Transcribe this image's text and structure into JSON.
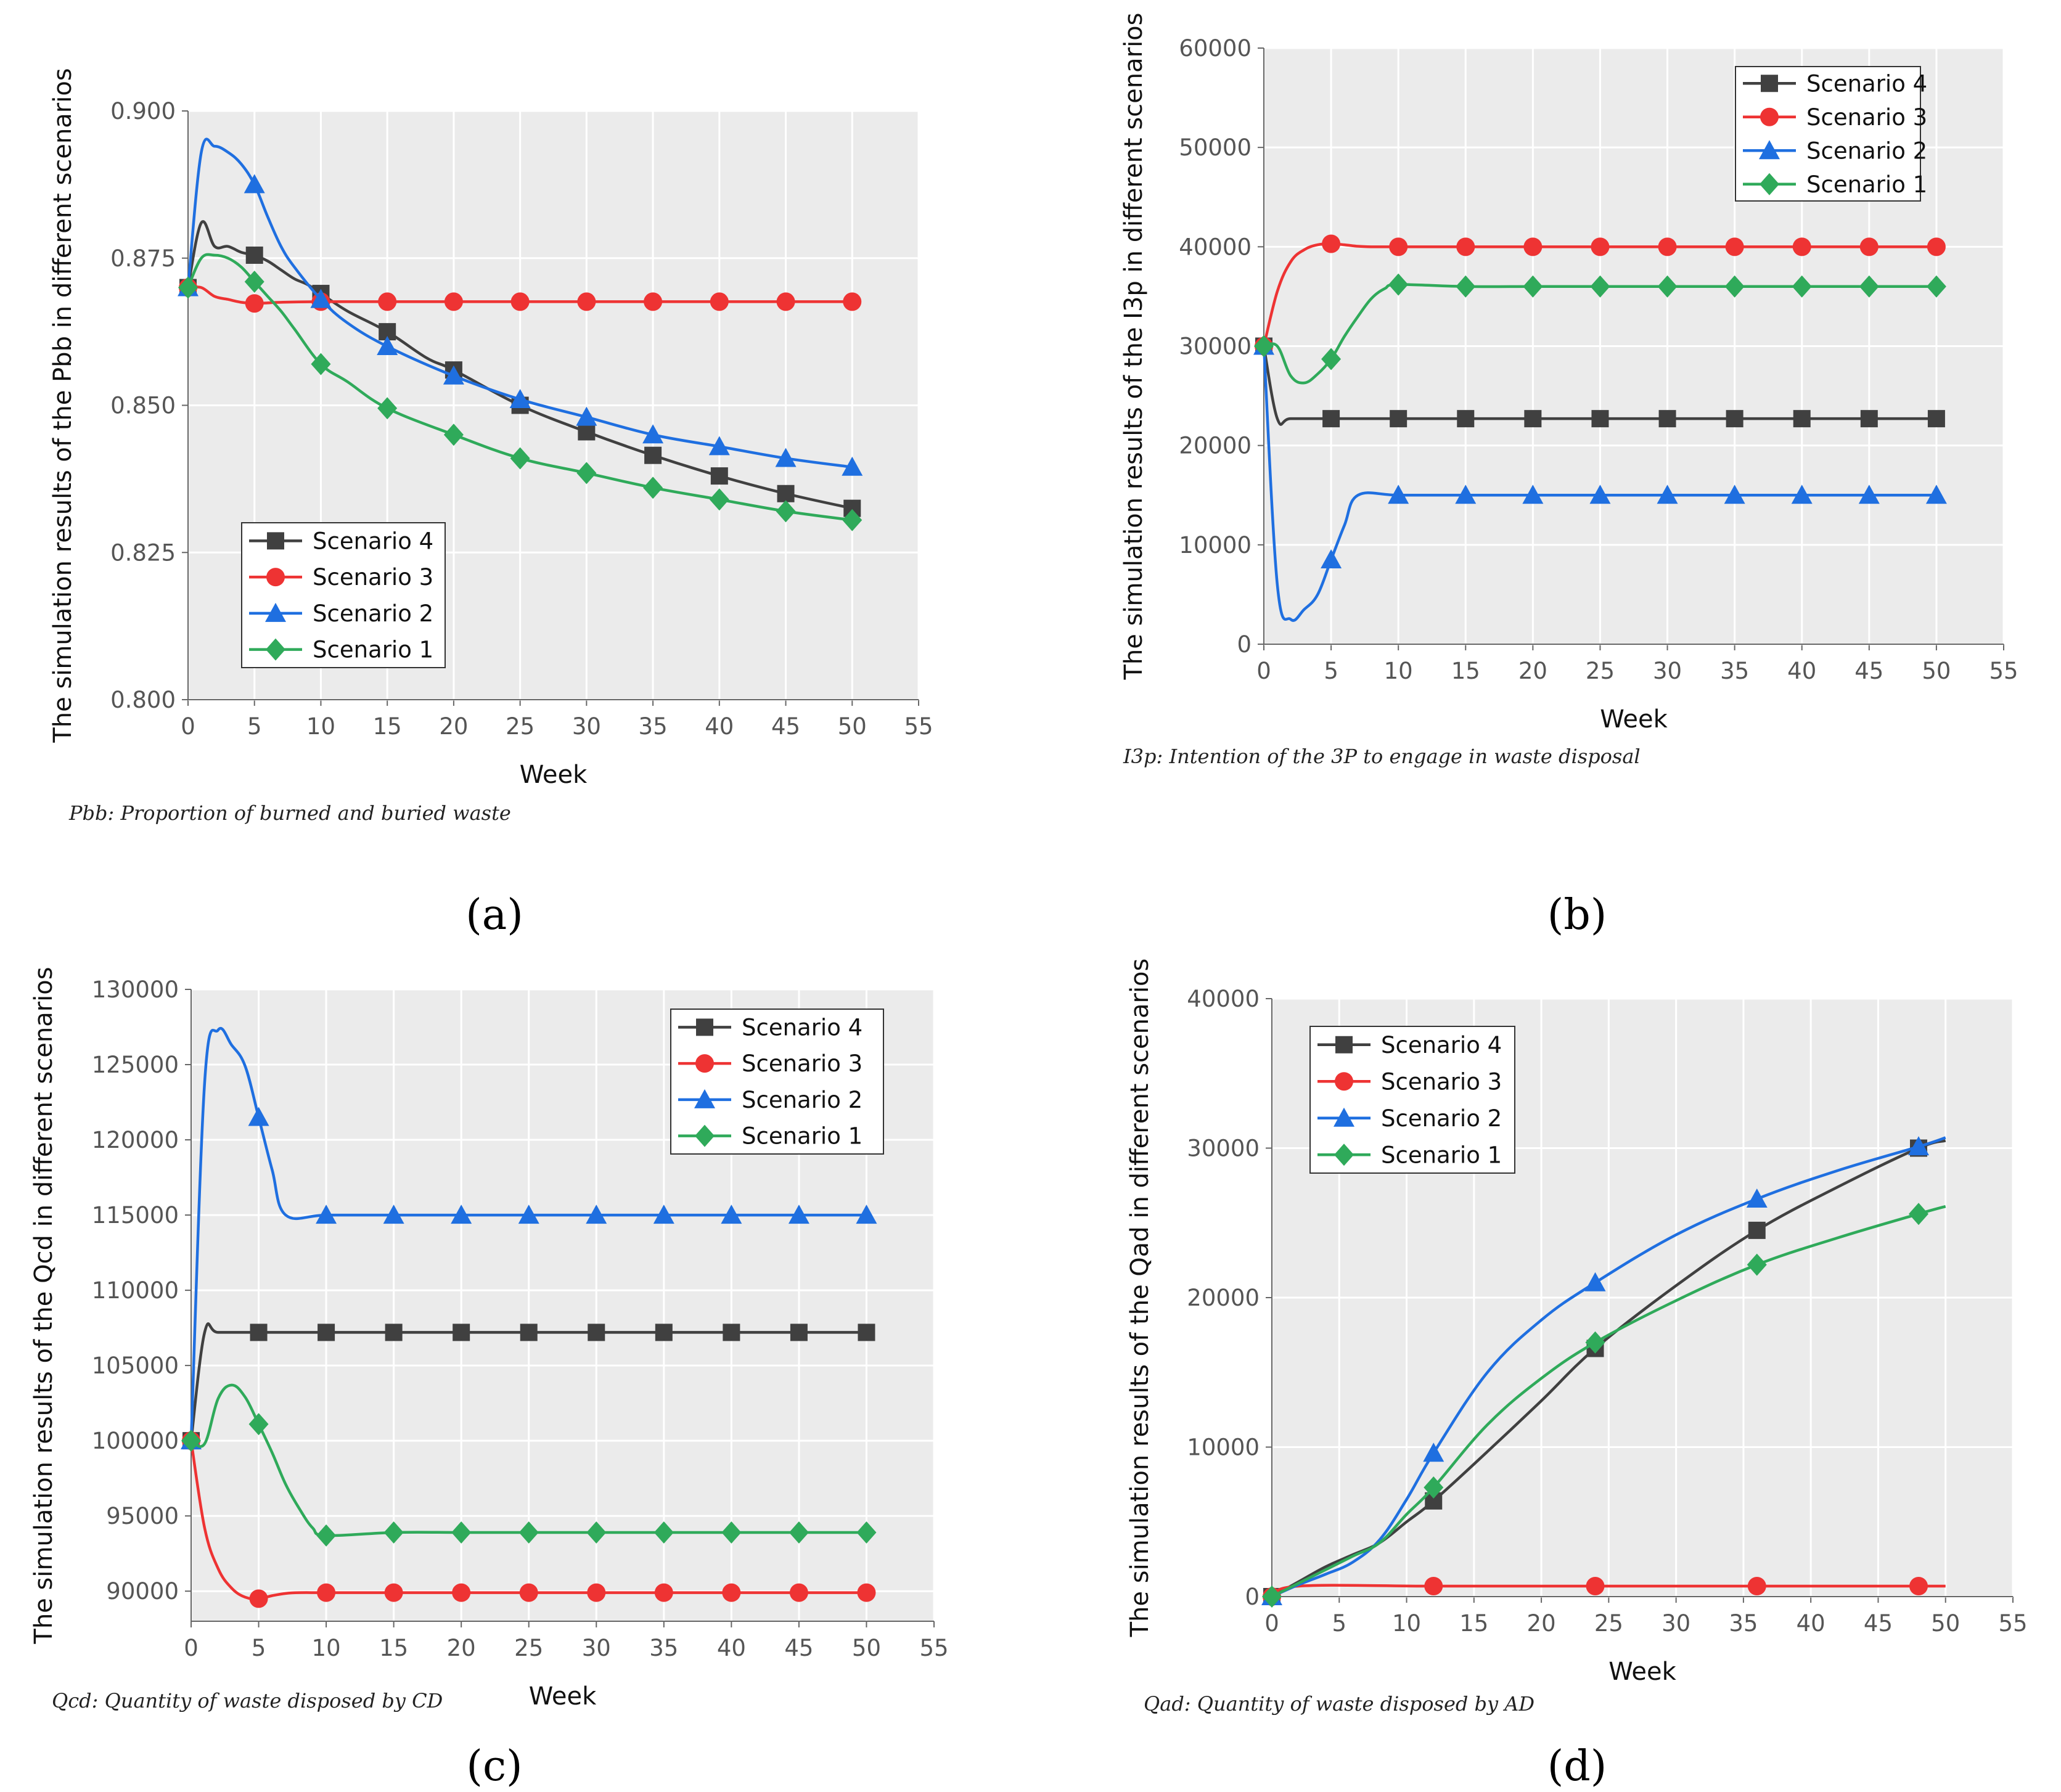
{
  "figure": {
    "panels": [
      {
        "id": "a",
        "label": "(a)",
        "footnote": "Pbb: Proportion of burned and buried waste",
        "symbol_label": "Pbb"
      },
      {
        "id": "b",
        "label": "(b)",
        "footnote": "I3p: Intention of the 3P to engage in waste disposal",
        "symbol_label": "I3p"
      },
      {
        "id": "c",
        "label": "(c)",
        "footnote": "Qcd: Quantity of waste disposed by CD",
        "symbol_label": "Qcd"
      },
      {
        "id": "d",
        "label": "(d)",
        "footnote": "Qad: Quantity of waste disposed by AD",
        "symbol_label": "Qad"
      }
    ]
  },
  "colors": {
    "scenario_4": "#404040",
    "scenario_3": "#ee3333",
    "scenario_2": "#1f6fe0",
    "scenario_1": "#2faa5a",
    "plot_bg": "#ebebeb",
    "grid": "#ffffff"
  },
  "chart_data": [
    {
      "type": "line",
      "panel": "a",
      "title": "",
      "xlabel": "Week",
      "ylabel": "The simulation results of the Pbb in different scenarios",
      "xlim": [
        0,
        55
      ],
      "ylim": [
        0.8,
        0.9
      ],
      "xticks": [
        "0",
        "5",
        "10",
        "15",
        "20",
        "25",
        "30",
        "35",
        "40",
        "45",
        "50",
        "55"
      ],
      "yticks": [
        "0.800",
        "0.825",
        "0.850",
        "0.875",
        "0.900"
      ],
      "legend_position": "bottom-left",
      "series": [
        {
          "name": "Scenario 4",
          "marker": "square",
          "color_key": "scenario_4",
          "x": [
            0,
            1,
            2,
            3,
            4,
            5,
            6,
            7,
            8,
            9,
            10,
            12,
            15,
            18,
            20,
            25,
            30,
            35,
            40,
            45,
            50
          ],
          "y": [
            0.87,
            0.881,
            0.877,
            0.877,
            0.876,
            0.8755,
            0.8745,
            0.873,
            0.8715,
            0.8705,
            0.869,
            0.866,
            0.8625,
            0.858,
            0.856,
            0.85,
            0.8455,
            0.8415,
            0.838,
            0.835,
            0.8325
          ],
          "marker_x": [
            0,
            5,
            10,
            15,
            20,
            25,
            30,
            35,
            40,
            45,
            50
          ]
        },
        {
          "name": "Scenario 3",
          "marker": "circle",
          "color_key": "scenario_3",
          "x": [
            0,
            1,
            2,
            3,
            4,
            5,
            6,
            7,
            10,
            15,
            20,
            25,
            30,
            35,
            40,
            45,
            50
          ],
          "y": [
            0.87,
            0.87,
            0.8685,
            0.868,
            0.8675,
            0.8673,
            0.8674,
            0.8675,
            0.8676,
            0.8676,
            0.8676,
            0.8676,
            0.8676,
            0.8676,
            0.8676,
            0.8676,
            0.8676
          ],
          "marker_x": [
            0,
            5,
            10,
            15,
            20,
            25,
            30,
            35,
            40,
            45,
            50
          ]
        },
        {
          "name": "Scenario 2",
          "marker": "triangle",
          "color_key": "scenario_2",
          "x": [
            0,
            1,
            2,
            3,
            4,
            5,
            6,
            7,
            8,
            10,
            12,
            15,
            20,
            25,
            30,
            35,
            40,
            45,
            50
          ],
          "y": [
            0.87,
            0.893,
            0.894,
            0.893,
            0.891,
            0.8875,
            0.882,
            0.877,
            0.8735,
            0.868,
            0.864,
            0.86,
            0.855,
            0.851,
            0.848,
            0.845,
            0.843,
            0.841,
            0.8395
          ],
          "marker_x": [
            0,
            5,
            10,
            15,
            20,
            25,
            30,
            35,
            40,
            45,
            50
          ]
        },
        {
          "name": "Scenario 1",
          "marker": "diamond",
          "color_key": "scenario_1",
          "x": [
            0,
            1,
            2,
            3,
            4,
            5,
            6,
            7,
            8,
            10,
            12,
            15,
            20,
            25,
            30,
            35,
            40,
            45,
            50
          ],
          "y": [
            0.87,
            0.875,
            0.8755,
            0.875,
            0.8735,
            0.871,
            0.8685,
            0.866,
            0.863,
            0.857,
            0.854,
            0.8495,
            0.845,
            0.841,
            0.8385,
            0.836,
            0.834,
            0.832,
            0.8305
          ],
          "marker_x": [
            0,
            5,
            10,
            15,
            20,
            25,
            30,
            35,
            40,
            45,
            50
          ]
        }
      ]
    },
    {
      "type": "line",
      "panel": "b",
      "title": "",
      "xlabel": "Week",
      "ylabel": "The simulation results of the I3p in different scenarios",
      "xlim": [
        0,
        55
      ],
      "ylim": [
        0,
        60000
      ],
      "xticks": [
        "0",
        "5",
        "10",
        "15",
        "20",
        "25",
        "30",
        "35",
        "40",
        "45",
        "50",
        "55"
      ],
      "yticks": [
        "0",
        "10000",
        "20000",
        "30000",
        "40000",
        "50000",
        "60000"
      ],
      "legend_position": "top-right",
      "series": [
        {
          "name": "Scenario 4",
          "marker": "square",
          "color_key": "scenario_4",
          "x": [
            0,
            1,
            2,
            5,
            10,
            15,
            20,
            25,
            30,
            35,
            40,
            45,
            50
          ],
          "y": [
            30000,
            22700,
            22700,
            22700,
            22700,
            22700,
            22700,
            22700,
            22700,
            22700,
            22700,
            22700,
            22700
          ],
          "marker_x": [
            0,
            5,
            10,
            15,
            20,
            25,
            30,
            35,
            40,
            45,
            50
          ]
        },
        {
          "name": "Scenario 3",
          "marker": "circle",
          "color_key": "scenario_3",
          "x": [
            0,
            1,
            2,
            3,
            4,
            5,
            6,
            7,
            8,
            10,
            15,
            20,
            25,
            30,
            35,
            40,
            45,
            50
          ],
          "y": [
            30000,
            35500,
            38500,
            39700,
            40200,
            40300,
            40200,
            40050,
            40000,
            40000,
            40000,
            40000,
            40000,
            40000,
            40000,
            40000,
            40000,
            40000
          ],
          "marker_x": [
            0,
            5,
            10,
            15,
            20,
            25,
            30,
            35,
            40,
            45,
            50
          ]
        },
        {
          "name": "Scenario 2",
          "marker": "triangle",
          "color_key": "scenario_2",
          "x": [
            0,
            1,
            2,
            3,
            4,
            5,
            6,
            7,
            10,
            15,
            20,
            25,
            30,
            35,
            40,
            45,
            50
          ],
          "y": [
            30000,
            6000,
            2500,
            3500,
            5000,
            8500,
            12000,
            15000,
            15000,
            15000,
            15000,
            15000,
            15000,
            15000,
            15000,
            15000,
            15000
          ],
          "marker_x": [
            0,
            5,
            10,
            15,
            20,
            25,
            30,
            35,
            40,
            45,
            50
          ]
        },
        {
          "name": "Scenario 1",
          "marker": "diamond",
          "color_key": "scenario_1",
          "x": [
            0,
            1,
            2,
            3,
            4,
            5,
            6,
            7,
            8,
            9,
            10,
            15,
            20,
            25,
            30,
            35,
            40,
            45,
            50
          ],
          "y": [
            30000,
            30000,
            27000,
            26300,
            27200,
            28700,
            31000,
            33000,
            34800,
            35800,
            36200,
            36000,
            36000,
            36000,
            36000,
            36000,
            36000,
            36000,
            36000
          ],
          "marker_x": [
            0,
            5,
            10,
            15,
            20,
            25,
            30,
            35,
            40,
            45,
            50
          ]
        }
      ]
    },
    {
      "type": "line",
      "panel": "c",
      "title": "",
      "xlabel": "Week",
      "ylabel": "The simulation results of the Qcd in different scenarios",
      "xlim": [
        0,
        55
      ],
      "ylim": [
        88000,
        130000
      ],
      "xticks": [
        "0",
        "5",
        "10",
        "15",
        "20",
        "25",
        "30",
        "35",
        "40",
        "45",
        "50",
        "55"
      ],
      "yticks": [
        "90000",
        "95000",
        "100000",
        "105000",
        "110000",
        "115000",
        "120000",
        "125000",
        "130000"
      ],
      "legend_position": "top-right",
      "series": [
        {
          "name": "Scenario 4",
          "marker": "square",
          "color_key": "scenario_4",
          "x": [
            0,
            1,
            2,
            5,
            10,
            15,
            20,
            25,
            30,
            35,
            40,
            45,
            50
          ],
          "y": [
            100000,
            107200,
            107200,
            107200,
            107200,
            107200,
            107200,
            107200,
            107200,
            107200,
            107200,
            107200,
            107200
          ],
          "marker_x": [
            0,
            5,
            10,
            15,
            20,
            25,
            30,
            35,
            40,
            45,
            50
          ]
        },
        {
          "name": "Scenario 3",
          "marker": "circle",
          "color_key": "scenario_3",
          "x": [
            0,
            1,
            2,
            3,
            4,
            5,
            6,
            7,
            8,
            10,
            15,
            20,
            25,
            30,
            35,
            40,
            45,
            50
          ],
          "y": [
            100000,
            94200,
            91500,
            90200,
            89600,
            89500,
            89700,
            89850,
            89900,
            89900,
            89900,
            89900,
            89900,
            89900,
            89900,
            89900,
            89900,
            89900
          ],
          "marker_x": [
            0,
            5,
            10,
            15,
            20,
            25,
            30,
            35,
            40,
            45,
            50
          ]
        },
        {
          "name": "Scenario 2",
          "marker": "triangle",
          "color_key": "scenario_2",
          "x": [
            0,
            1,
            2,
            3,
            4,
            5,
            6,
            7,
            10,
            15,
            20,
            25,
            30,
            35,
            40,
            45,
            50
          ],
          "y": [
            100000,
            123800,
            127300,
            126300,
            124900,
            121500,
            118000,
            115000,
            115000,
            115000,
            115000,
            115000,
            115000,
            115000,
            115000,
            115000,
            115000
          ],
          "marker_x": [
            0,
            5,
            10,
            15,
            20,
            25,
            30,
            35,
            40,
            45,
            50
          ]
        },
        {
          "name": "Scenario 1",
          "marker": "diamond",
          "color_key": "scenario_1",
          "x": [
            0,
            1,
            2,
            3,
            4,
            5,
            6,
            7,
            8,
            9,
            10,
            15,
            20,
            25,
            30,
            35,
            40,
            45,
            50
          ],
          "y": [
            100000,
            99800,
            102800,
            103700,
            102900,
            101100,
            99200,
            97100,
            95500,
            94200,
            93700,
            93900,
            93900,
            93900,
            93900,
            93900,
            93900,
            93900,
            93900
          ],
          "marker_x": [
            0,
            5,
            10,
            15,
            20,
            25,
            30,
            35,
            40,
            45,
            50
          ]
        }
      ]
    },
    {
      "type": "line",
      "panel": "d",
      "title": "",
      "xlabel": "Week",
      "ylabel": "The simulation results of the Qad in different scenarios",
      "xlim": [
        0,
        55
      ],
      "ylim": [
        0,
        40000
      ],
      "xticks": [
        "0",
        "5",
        "10",
        "15",
        "20",
        "25",
        "30",
        "35",
        "40",
        "45",
        "50",
        "55"
      ],
      "yticks": [
        "0",
        "10000",
        "20000",
        "30000",
        "40000"
      ],
      "legend_position": "top-left",
      "series": [
        {
          "name": "Scenario 4",
          "marker": "square",
          "color_key": "scenario_4",
          "x": [
            0,
            2,
            4,
            6,
            8,
            10,
            12,
            16,
            20,
            24,
            30,
            36,
            42,
            48,
            50
          ],
          "y": [
            0,
            1000,
            2000,
            2800,
            3600,
            5000,
            6400,
            9700,
            13100,
            16600,
            20800,
            24500,
            27400,
            30000,
            30500
          ],
          "marker_x": [
            0,
            12,
            24,
            36,
            48
          ]
        },
        {
          "name": "Scenario 3",
          "marker": "circle",
          "color_key": "scenario_3",
          "x": [
            0,
            2,
            12,
            24,
            36,
            48,
            50
          ],
          "y": [
            0,
            700,
            700,
            700,
            700,
            700,
            700
          ],
          "marker_x": [
            0,
            12,
            24,
            36,
            48
          ]
        },
        {
          "name": "Scenario 2",
          "marker": "triangle",
          "color_key": "scenario_2",
          "x": [
            0,
            2,
            4,
            6,
            8,
            10,
            12,
            16,
            20,
            24,
            30,
            36,
            42,
            48,
            50
          ],
          "y": [
            0,
            800,
            1500,
            2300,
            3800,
            6500,
            9600,
            15000,
            18500,
            21000,
            24200,
            26600,
            28500,
            30100,
            30700
          ],
          "marker_x": [
            0,
            12,
            24,
            36,
            48
          ]
        },
        {
          "name": "Scenario 1",
          "marker": "diamond",
          "color_key": "scenario_1",
          "x": [
            0,
            2,
            4,
            6,
            8,
            10,
            12,
            16,
            20,
            24,
            30,
            36,
            42,
            48,
            50
          ],
          "y": [
            0,
            900,
            1800,
            2700,
            3600,
            5500,
            7300,
            11500,
            14600,
            17000,
            19800,
            22200,
            24000,
            25600,
            26100
          ],
          "marker_x": [
            0,
            12,
            24,
            36,
            48
          ]
        }
      ]
    }
  ]
}
